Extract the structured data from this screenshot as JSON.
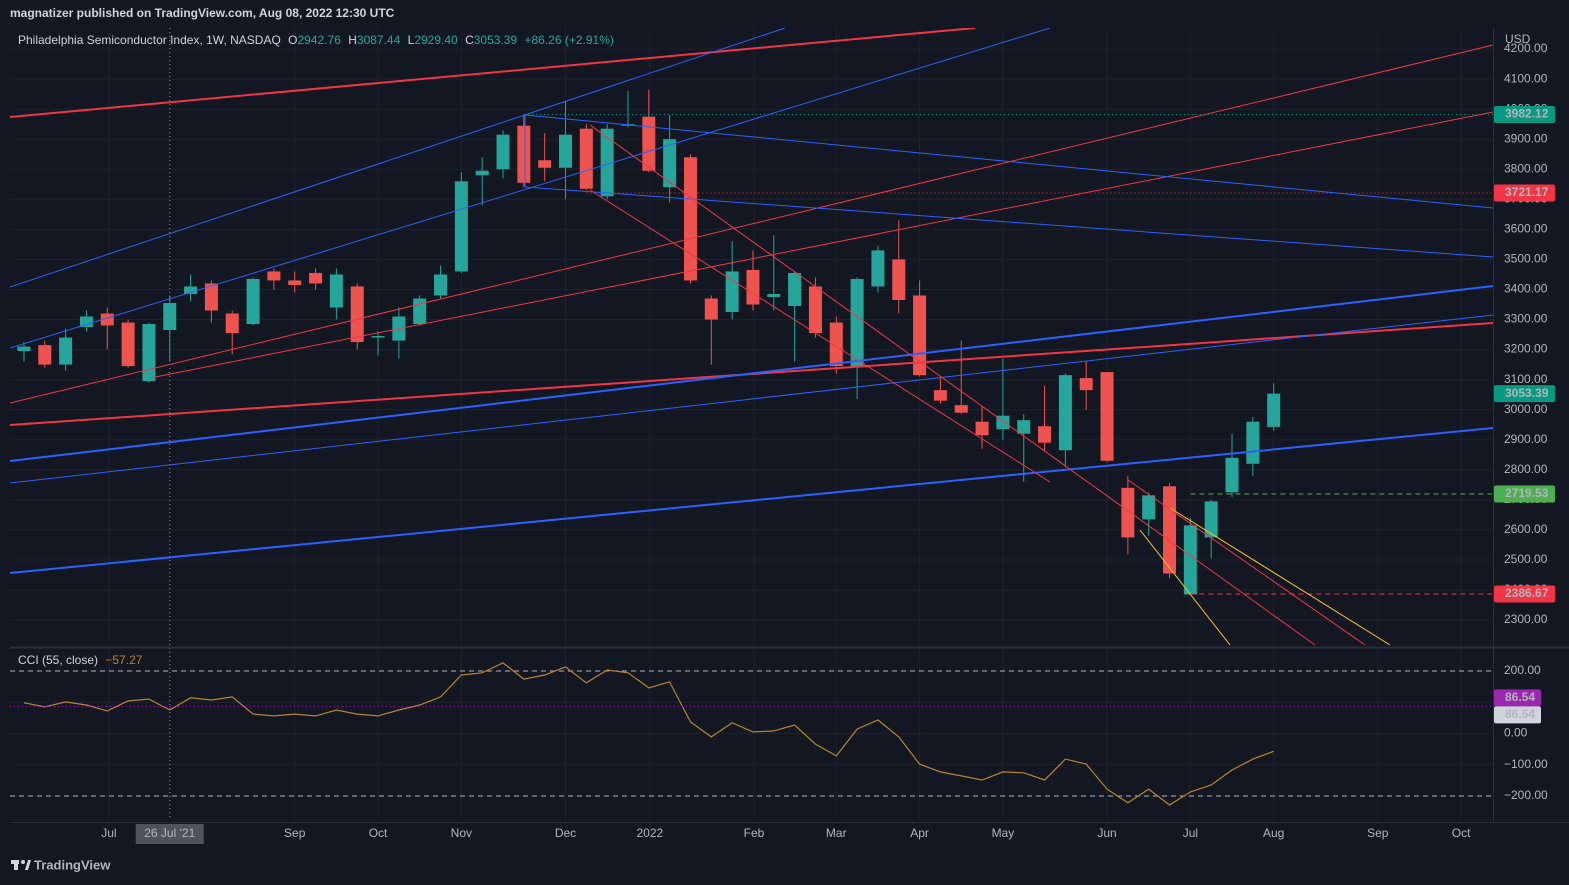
{
  "header": {
    "publisher": "magnatizer published on TradingView.com, Aug 08, 2022 12:30 UTC"
  },
  "footer": {
    "brand": "TradingView"
  },
  "chart_data": [
    {
      "type": "candlestick",
      "title": "Philadelphia Semiconductor Index, 1W, NASDAQ",
      "ohlc_legend": [
        {
          "key": "O",
          "value": "2942.76"
        },
        {
          "key": "H",
          "value": "3087.44"
        },
        {
          "key": "L",
          "value": "2929.40"
        },
        {
          "key": "C",
          "value": "3053.39"
        }
      ],
      "change": "+86.26 (+2.91%)",
      "currency": "USD",
      "up_color": "#26a69a",
      "down_color": "#ef5350",
      "grid": true,
      "x": [
        0,
        1,
        2,
        3,
        4,
        5,
        6,
        7,
        8,
        9,
        10,
        11,
        12,
        13,
        14,
        15,
        16,
        17,
        18,
        19,
        20,
        21,
        22,
        23,
        24,
        25,
        26,
        27,
        28,
        29,
        30,
        31,
        32,
        33,
        34,
        35,
        36,
        37,
        38,
        39,
        40,
        41,
        42,
        43,
        44,
        45,
        46,
        47,
        48,
        49,
        50,
        51,
        52,
        53,
        54,
        55,
        56,
        57,
        58,
        59,
        60
      ],
      "open": [
        3195,
        3215,
        3150,
        3275,
        3320,
        3290,
        3095,
        3265,
        3385,
        3420,
        3320,
        3285,
        3460,
        3430,
        3455,
        3340,
        3410,
        3240,
        3230,
        3285,
        3380,
        3460,
        3780,
        3800,
        3945,
        3830,
        3805,
        3935,
        3710,
        3945,
        3975,
        3740,
        3840,
        3370,
        3325,
        3465,
        3375,
        3345,
        3410,
        3290,
        3145,
        3410,
        3500,
        3380,
        3065,
        3015,
        2960,
        2935,
        2920,
        2945,
        2865,
        3105,
        3125,
        2740,
        2635,
        2745,
        2385,
        2575,
        2725,
        2820,
        2942.76
      ],
      "high": [
        3225,
        3230,
        3270,
        3330,
        3340,
        3300,
        3290,
        3380,
        3450,
        3430,
        3330,
        3440,
        3470,
        3460,
        3470,
        3470,
        3420,
        3260,
        3340,
        3380,
        3480,
        3790,
        3840,
        3930,
        3980,
        3920,
        4025,
        3950,
        3950,
        4060,
        4065,
        3980,
        3850,
        3380,
        3560,
        3530,
        3580,
        3460,
        3440,
        3310,
        3440,
        3545,
        3630,
        3430,
        3110,
        3230,
        3010,
        3170,
        2985,
        3080,
        3120,
        3160,
        3125,
        2780,
        2725,
        2755,
        2640,
        2700,
        2920,
        2975,
        3087.44
      ],
      "low": [
        3160,
        3140,
        3130,
        3260,
        3200,
        3140,
        3090,
        3160,
        3360,
        3290,
        3185,
        3280,
        3400,
        3390,
        3400,
        3300,
        3200,
        3180,
        3170,
        3280,
        3370,
        3455,
        3680,
        3770,
        3740,
        3760,
        3700,
        3730,
        3700,
        3940,
        3790,
        3690,
        3420,
        3150,
        3300,
        3330,
        3330,
        3160,
        3240,
        3120,
        3035,
        3390,
        3320,
        3110,
        3020,
        2985,
        2870,
        2900,
        2760,
        2860,
        2810,
        3000,
        2825,
        2520,
        2580,
        2440,
        2385,
        2505,
        2710,
        2780,
        2929.4
      ],
      "close": [
        3210,
        3150,
        3240,
        3310,
        3280,
        3145,
        3285,
        3355,
        3410,
        3330,
        3255,
        3435,
        3430,
        3415,
        3420,
        3450,
        3225,
        3245,
        3310,
        3370,
        3450,
        3760,
        3795,
        3915,
        3755,
        3805,
        3915,
        3735,
        3935,
        3950,
        3795,
        3900,
        3430,
        3300,
        3460,
        3350,
        3385,
        3455,
        3255,
        3145,
        3435,
        3530,
        3365,
        3115,
        3030,
        2990,
        2915,
        2980,
        2965,
        2890,
        3115,
        3065,
        2830,
        2575,
        2715,
        2455,
        2615,
        2695,
        2840,
        2960,
        3053.39
      ],
      "xlim": [
        -0.67,
        70.53
      ],
      "xticks": [
        {
          "value": 4.08,
          "label": "Jul"
        },
        {
          "value": 13.0,
          "label": "Sep"
        },
        {
          "value": 17.0,
          "label": "Oct"
        },
        {
          "value": 21.0,
          "label": "Nov"
        },
        {
          "value": 26.0,
          "label": "Dec"
        },
        {
          "value": 30.05,
          "label": "2022"
        },
        {
          "value": 35.05,
          "label": "Feb"
        },
        {
          "value": 39.0,
          "label": "Mar"
        },
        {
          "value": 43.0,
          "label": "Apr"
        },
        {
          "value": 47.0,
          "label": "May"
        },
        {
          "value": 52.0,
          "label": "Jun"
        },
        {
          "value": 56.0,
          "label": "Jul"
        },
        {
          "value": 60.0,
          "label": "Aug"
        },
        {
          "value": 65.0,
          "label": "Sep"
        },
        {
          "value": 69.0,
          "label": "Oct"
        }
      ],
      "crosshair": {
        "value": 7,
        "label": "26 Jul '21"
      },
      "ylim": [
        2217,
        4270
      ],
      "yticks": [
        {
          "value": 2300,
          "label": "2300.00"
        },
        {
          "value": 2400,
          "label": "2400.00"
        },
        {
          "value": 2500,
          "label": "2500.00"
        },
        {
          "value": 2600,
          "label": "2600.00"
        },
        {
          "value": 2700,
          "label": "2700.00"
        },
        {
          "value": 2800,
          "label": "2800.00"
        },
        {
          "value": 2900,
          "label": "2900.00"
        },
        {
          "value": 3000,
          "label": "3000.00"
        },
        {
          "value": 3100,
          "label": "3100.00"
        },
        {
          "value": 3200,
          "label": "3200.00"
        },
        {
          "value": 3300,
          "label": "3300.00"
        },
        {
          "value": 3400,
          "label": "3400.00"
        },
        {
          "value": 3500,
          "label": "3500.00"
        },
        {
          "value": 3600,
          "label": "3600.00"
        },
        {
          "value": 3700,
          "label": "3700.00"
        },
        {
          "value": 3800,
          "label": "3800.00"
        },
        {
          "value": 3900,
          "label": "3900.00"
        },
        {
          "value": 4000,
          "label": "4000.00"
        },
        {
          "value": 4100,
          "label": "4100.00"
        },
        {
          "value": 4200,
          "label": "4200.00"
        }
      ],
      "price_labels": [
        {
          "value": 3982.12,
          "color": "#089981",
          "line": "dotted",
          "x_from": 24
        },
        {
          "value": 3721.17,
          "color": "#f23645",
          "line": "dotted",
          "x_from": 27
        },
        {
          "value": 3053.39,
          "color": "#089981"
        },
        {
          "value": 2719.53,
          "color": "#4caf50",
          "line": "dashed",
          "x_from": 56
        },
        {
          "value": 2386.67,
          "color": "#f23645",
          "line": "dashed",
          "x_from": 56
        }
      ]
    },
    {
      "type": "line",
      "title": "CCI (55, close)",
      "legend_value": "−57.27",
      "color": "#b8862b",
      "grid": true,
      "x": [
        0,
        1,
        2,
        3,
        4,
        5,
        6,
        7,
        8,
        9,
        10,
        11,
        12,
        13,
        14,
        15,
        16,
        17,
        18,
        19,
        20,
        21,
        22,
        23,
        24,
        25,
        26,
        27,
        28,
        29,
        30,
        31,
        32,
        33,
        34,
        35,
        36,
        37,
        38,
        39,
        40,
        41,
        42,
        43,
        44,
        45,
        46,
        47,
        48,
        49,
        50,
        51,
        52,
        53,
        54,
        55,
        56,
        57,
        58,
        59,
        60
      ],
      "values": [
        98,
        85,
        101,
        91,
        72,
        104,
        110,
        75,
        114,
        107,
        117,
        62,
        56,
        62,
        56,
        75,
        62,
        56,
        75,
        91,
        117,
        187,
        194,
        226,
        174,
        187,
        213,
        162,
        203,
        194,
        146,
        165,
        37,
        -11,
        34,
        5,
        8,
        27,
        -34,
        -72,
        14,
        43,
        -11,
        -98,
        -123,
        -136,
        -149,
        -123,
        -126,
        -149,
        -82,
        -98,
        -178,
        -222,
        -178,
        -229,
        -187,
        -165,
        -117,
        -82,
        -57.27
      ],
      "xlim": [
        -0.67,
        70.53
      ],
      "ylim": [
        -277,
        267
      ],
      "yticks": [
        {
          "value": 200,
          "label": "200.00"
        },
        {
          "value": 100,
          "label": "100.00"
        },
        {
          "value": 0,
          "label": "0.00"
        },
        {
          "value": -100,
          "label": "−100.00"
        },
        {
          "value": -200,
          "label": "−200.00"
        }
      ],
      "bands": [
        200,
        -200
      ],
      "price_labels": [
        {
          "value": 86.54,
          "color": "#9c27b0",
          "text_color": "#ffffff",
          "line": "dotted"
        },
        {
          "value": 86.54,
          "color": "#d1d4dc",
          "text_color": "#131722"
        }
      ]
    }
  ]
}
